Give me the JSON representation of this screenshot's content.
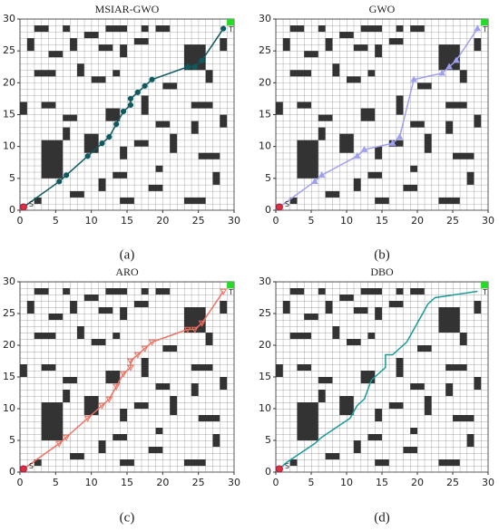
{
  "map": {
    "obstacles": [
      [
        2,
        28,
        2,
        1
      ],
      [
        6,
        28,
        1,
        1
      ],
      [
        9,
        27,
        2,
        1
      ],
      [
        12,
        28,
        3,
        1
      ],
      [
        17,
        28,
        1,
        1
      ],
      [
        19,
        28,
        2,
        1
      ],
      [
        1,
        25,
        1,
        2
      ],
      [
        4,
        24,
        2,
        1
      ],
      [
        7,
        25,
        1,
        2
      ],
      [
        11,
        25,
        2,
        1
      ],
      [
        14,
        24,
        1,
        2
      ],
      [
        16,
        26,
        2,
        1
      ],
      [
        23,
        22,
        3,
        4
      ],
      [
        28,
        25,
        1,
        2
      ],
      [
        2,
        21,
        3,
        1
      ],
      [
        8,
        21,
        1,
        2
      ],
      [
        10,
        20,
        2,
        1
      ],
      [
        13,
        21,
        1,
        1
      ],
      [
        20,
        19,
        2,
        1
      ],
      [
        26,
        20,
        1,
        2
      ],
      [
        0,
        15,
        1,
        2
      ],
      [
        3,
        16,
        2,
        1
      ],
      [
        6,
        14,
        2,
        1
      ],
      [
        12,
        14,
        2,
        2
      ],
      [
        17,
        15,
        1,
        3
      ],
      [
        19,
        13,
        2,
        1
      ],
      [
        24,
        16,
        3,
        1
      ],
      [
        28,
        13,
        1,
        2
      ],
      [
        3,
        5,
        3,
        6
      ],
      [
        9,
        9,
        2,
        3
      ],
      [
        14,
        8,
        1,
        2
      ],
      [
        16,
        10,
        2,
        1
      ],
      [
        21,
        9,
        1,
        3
      ],
      [
        25,
        8,
        3,
        1
      ],
      [
        7,
        2,
        2,
        1
      ],
      [
        11,
        3,
        1,
        2
      ],
      [
        14,
        1,
        2,
        1
      ],
      [
        18,
        3,
        2,
        1
      ],
      [
        23,
        1,
        3,
        1
      ],
      [
        27,
        4,
        1,
        2
      ],
      [
        2,
        1,
        1,
        1
      ],
      [
        19,
        6,
        1,
        1
      ],
      [
        6,
        11,
        1,
        2
      ],
      [
        24,
        12,
        1,
        2
      ],
      [
        13,
        5,
        2,
        1
      ]
    ]
  },
  "chart_data": [
    {
      "type": "line",
      "title": "MSIAR-GWO",
      "panel_label": "(a)",
      "color": "#0e5a60",
      "marker": "circle",
      "x": [
        0.5,
        5.5,
        6.5,
        9.5,
        11.5,
        12.5,
        13.5,
        14.5,
        15.5,
        15.5,
        16.5,
        17.5,
        18.5,
        23.5,
        24.5,
        25.5,
        28.5
      ],
      "y": [
        0.5,
        4.5,
        5.5,
        8.5,
        10.5,
        11.5,
        13.5,
        15.5,
        16.5,
        17.5,
        18.5,
        19.5,
        20.5,
        22.5,
        22.5,
        23.5,
        28.5
      ],
      "start": {
        "label": "S",
        "x": 0.5,
        "y": 0.5
      },
      "goal": {
        "label": "T",
        "x": 29.5,
        "y": 29.5
      },
      "xlim": [
        0,
        30
      ],
      "ylim": [
        0,
        30
      ],
      "xticks": [
        0,
        5,
        10,
        15,
        20,
        25,
        30
      ],
      "yticks": [
        0,
        5,
        10,
        15,
        20,
        25,
        30
      ]
    },
    {
      "type": "line",
      "title": "GWO",
      "panel_label": "(b)",
      "color": "#a0a0f0",
      "marker": "triangle",
      "x": [
        0.5,
        5.5,
        6.5,
        11.5,
        12.5,
        16.5,
        17.5,
        19.5,
        23.5,
        24.5,
        25.5,
        28.5
      ],
      "y": [
        0.5,
        4.5,
        5.5,
        8.5,
        9.5,
        10.5,
        11.5,
        20.5,
        21.5,
        22.5,
        23.5,
        28.5
      ],
      "start": {
        "label": "S",
        "x": 0.5,
        "y": 0.5
      },
      "goal": {
        "label": "T",
        "x": 29.5,
        "y": 29.5
      },
      "xlim": [
        0,
        30
      ],
      "ylim": [
        0,
        30
      ],
      "xticks": [
        0,
        5,
        10,
        15,
        20,
        25,
        30
      ],
      "yticks": [
        0,
        5,
        10,
        15,
        20,
        25,
        30
      ]
    },
    {
      "type": "line",
      "title": "ARO",
      "panel_label": "(c)",
      "color": "#f07060",
      "marker": "triangle-down",
      "x": [
        0.5,
        5.5,
        6.5,
        9.5,
        11.5,
        12.5,
        13.5,
        14.5,
        15.5,
        15.5,
        16.5,
        17.5,
        18.5,
        23.5,
        24.5,
        25.5,
        28.5
      ],
      "y": [
        0.5,
        4.5,
        5.5,
        8.5,
        10.5,
        11.5,
        13.5,
        15.5,
        16.5,
        17.5,
        18.5,
        19.5,
        20.5,
        22.5,
        22.5,
        23.5,
        28.5
      ],
      "start": {
        "label": "S",
        "x": 0.5,
        "y": 0.5
      },
      "goal": {
        "label": "T",
        "x": 29.5,
        "y": 29.5
      },
      "xlim": [
        0,
        30
      ],
      "ylim": [
        0,
        30
      ],
      "xticks": [
        0,
        5,
        10,
        15,
        20,
        25,
        30
      ],
      "yticks": [
        0,
        5,
        10,
        15,
        20,
        25,
        30
      ]
    },
    {
      "type": "line",
      "title": "DBO",
      "panel_label": "(d)",
      "color": "#1a9a9a",
      "marker": "none",
      "x": [
        0.5,
        1.5,
        5.5,
        6.5,
        10.5,
        11.5,
        12.5,
        13.5,
        14.5,
        15.5,
        15.5,
        16.5,
        17.5,
        18.5,
        21.5,
        22.5,
        28.5
      ],
      "y": [
        0.5,
        1.5,
        4.5,
        5.5,
        8.5,
        10.5,
        11.5,
        14.5,
        15.5,
        16.5,
        18.5,
        18.5,
        19.5,
        20.5,
        26.5,
        27.5,
        28.5
      ],
      "start": {
        "label": "S",
        "x": 0.5,
        "y": 0.5
      },
      "goal": {
        "label": "T",
        "x": 29.5,
        "y": 29.5
      },
      "xlim": [
        0,
        30
      ],
      "ylim": [
        0,
        30
      ],
      "xticks": [
        0,
        5,
        10,
        15,
        20,
        25,
        30
      ],
      "yticks": [
        0,
        5,
        10,
        15,
        20,
        25,
        30
      ]
    }
  ]
}
